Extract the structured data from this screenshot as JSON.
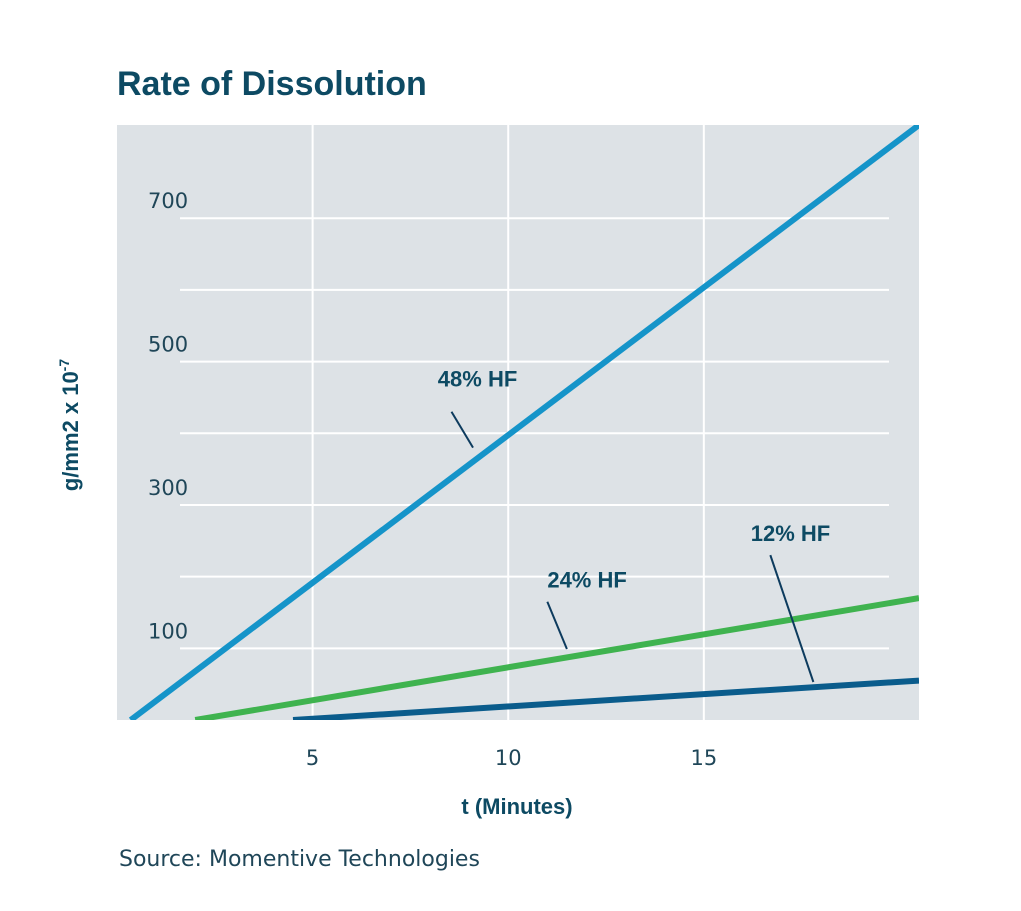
{
  "chart_data": {
    "type": "line",
    "title": "Rate of Dissolution",
    "xlabel": "t (Minutes)",
    "ylabel": "g/mm2 x 10",
    "ylabel_exponent": "-7",
    "source": "Source: Momentive Technologies",
    "xlim": [
      0,
      20.5
    ],
    "ylim": [
      0,
      830
    ],
    "x_ticks": [
      5,
      10,
      15
    ],
    "y_ticks": [
      100,
      300,
      500,
      700
    ],
    "x_tick_labels": [
      "5",
      "10",
      "15"
    ],
    "y_tick_labels": [
      "100",
      "300",
      "500",
      "700"
    ],
    "x_gridlines": [
      5,
      10,
      15
    ],
    "y_gridlines": [
      100,
      200,
      300,
      400,
      500,
      600,
      700
    ],
    "grid": true,
    "legend": "none",
    "background": "#dde2e6",
    "series": [
      {
        "name": "48% HF",
        "color": "#1594c9",
        "x": [
          0.35,
          20.5
        ],
        "y": [
          0,
          830
        ]
      },
      {
        "name": "24% HF",
        "color": "#3fb34f",
        "x": [
          2.0,
          20.5
        ],
        "y": [
          0,
          170
        ]
      },
      {
        "name": "12% HF",
        "color": "#0a5c8c",
        "x": [
          4.5,
          20.5
        ],
        "y": [
          0,
          55
        ]
      }
    ],
    "annotations": [
      {
        "text": "48% HF",
        "series": "48% HF",
        "text_x": 8.2,
        "text_y": 465,
        "line_from": [
          8.55,
          430
        ],
        "line_to": [
          9.1,
          380
        ]
      },
      {
        "text": "24% HF",
        "series": "24% HF",
        "text_x": 11.0,
        "text_y": 185,
        "line_from": [
          11.0,
          165
        ],
        "line_to": [
          11.5,
          99
        ]
      },
      {
        "text": "12% HF",
        "series": "12% HF",
        "text_x": 16.2,
        "text_y": 250,
        "line_from": [
          16.7,
          230
        ],
        "line_to": [
          17.8,
          53
        ]
      }
    ]
  }
}
